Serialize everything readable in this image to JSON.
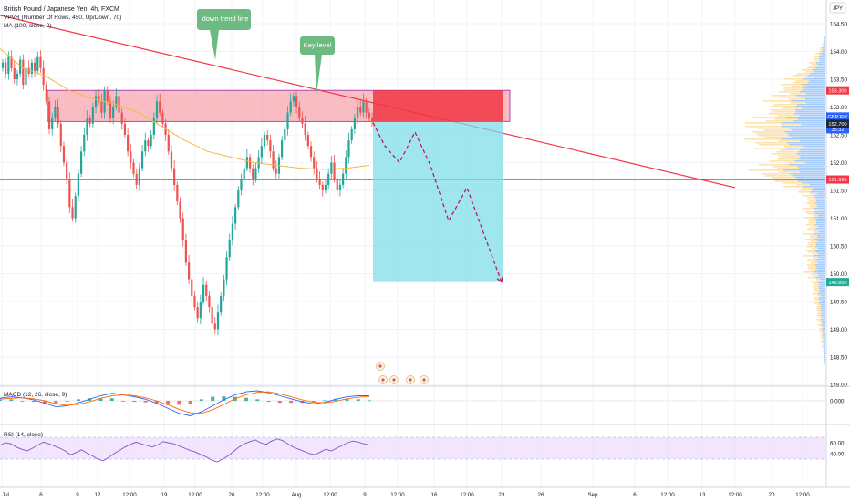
{
  "header": {
    "symbol_title": "British Pound / Japanese Yen, 4h, FXCM",
    "indicator_vpvr": "VPVR (Number Of Rows, 450, Up/Down, 70)",
    "indicator_ma": "MA (100, close, 0)",
    "currency_badge": "JPY"
  },
  "annotations": {
    "down_trend_line": "down trend line",
    "key_level": "Key level"
  },
  "chart_data": [
    {
      "type": "candlestick",
      "title": "British Pound / Japanese Yen, 4h, FXCM",
      "symbol": "GBPJPY",
      "ylim": [
        147.9,
        154.75
      ],
      "y_ticks": [
        "154.50",
        "154.00",
        "153.50",
        "153.00",
        "152.50",
        "152.00",
        "151.50",
        "151.00",
        "150.50",
        "150.00",
        "149.50",
        "149.00",
        "148.50",
        "148.00"
      ],
      "y_tick_values": [
        154.5,
        154.0,
        153.5,
        153.0,
        152.5,
        152.0,
        151.5,
        151.0,
        150.5,
        150.0,
        149.5,
        149.0,
        148.5,
        148.0
      ],
      "x_ticks": [
        "Jul",
        "6",
        "9",
        "12",
        "12:00",
        "19",
        "12:00",
        "26",
        "12:00",
        "Aug",
        "12:00",
        "9",
        "12:00",
        "16",
        "12:00",
        "23",
        "26",
        "Sep",
        "6",
        "12:00",
        "13",
        "12:00",
        "20",
        "12:00"
      ],
      "price_labels": [
        {
          "text": "153.300",
          "value": 153.3,
          "color": "#f23645"
        },
        {
          "text": "GBPJPY",
          "value": 152.83,
          "color": "#2962ff"
        },
        {
          "text": "152.734",
          "value": 152.734,
          "color": "#2962ff"
        },
        {
          "text": "35:32",
          "value": 152.6,
          "color": "#2962ff"
        },
        {
          "text": "152.700",
          "value": 152.7,
          "color": "#1f2a37"
        },
        {
          "text": "151.696",
          "value": 151.696,
          "color": "#f23645"
        },
        {
          "text": "149.850",
          "value": 149.85,
          "color": "#22ab94"
        }
      ],
      "key_level_zone": {
        "top": 153.3,
        "bottom": 152.74
      },
      "horizontal_level": 151.696,
      "trend_line": {
        "from": 154.65,
        "to": 151.55
      },
      "ma_100": [
        154.05,
        153.7,
        153.55,
        153.3,
        153.15,
        153.05,
        152.9,
        152.65,
        152.4,
        152.2,
        152.1,
        152.0,
        151.95,
        151.9,
        151.88,
        151.9,
        151.95
      ],
      "candles_close": [
        153.8,
        153.6,
        153.9,
        153.7,
        153.5,
        153.6,
        153.85,
        153.4,
        153.7,
        153.6,
        153.8,
        153.65,
        153.9,
        153.7,
        153.4,
        153.1,
        152.6,
        152.8,
        153.0,
        152.7,
        152.3,
        152.0,
        151.7,
        151.2,
        151.0,
        151.4,
        151.8,
        152.2,
        152.5,
        152.8,
        152.7,
        153.0,
        153.2,
        153.1,
        152.9,
        153.3,
        153.1,
        152.8,
        153.0,
        153.2,
        152.9,
        152.7,
        152.5,
        152.2,
        152.0,
        151.8,
        151.6,
        151.9,
        152.2,
        152.4,
        152.3,
        152.5,
        152.8,
        153.1,
        152.9,
        152.7,
        152.5,
        152.2,
        151.9,
        151.6,
        151.3,
        151.0,
        150.6,
        150.2,
        149.9,
        149.6,
        149.4,
        149.2,
        149.5,
        149.8,
        149.6,
        149.4,
        149.1,
        149.0,
        149.3,
        149.6,
        149.9,
        150.3,
        150.6,
        150.9,
        151.2,
        151.5,
        151.7,
        151.9,
        152.1,
        151.9,
        151.7,
        151.9,
        152.1,
        152.3,
        152.5,
        152.4,
        152.2,
        151.9,
        151.8,
        152.1,
        152.4,
        152.6,
        152.9,
        153.1,
        153.2,
        153.0,
        152.8,
        152.7,
        152.5,
        152.3,
        152.1,
        151.9,
        151.7,
        151.6,
        151.5,
        151.6,
        151.8,
        152.0,
        151.7,
        151.5,
        151.6,
        151.8,
        152.1,
        152.4,
        152.6,
        152.8,
        153.0,
        152.9,
        153.1,
        152.9,
        152.8,
        152.73
      ],
      "projection_path": [
        152.72,
        152.3,
        152.0,
        152.55,
        151.95,
        150.95,
        151.55,
        149.85
      ],
      "short_position": {
        "entry": 152.734,
        "stop": 153.3,
        "target": 149.85
      }
    },
    {
      "type": "line",
      "title": "MACD (12, 26, close, 9)",
      "y_ticks": [
        "0.000"
      ],
      "y_tick_values": [
        0.0
      ],
      "series": [
        {
          "values": [
            0.05,
            0.08,
            0.06,
            0.02,
            -0.05,
            -0.12,
            -0.1,
            -0.04,
            0.03,
            0.1,
            0.15,
            0.12,
            0.08,
            0.03,
            -0.05,
            -0.15,
            -0.25,
            -0.3,
            -0.22,
            -0.1,
            0.02,
            0.12,
            0.18,
            0.2,
            0.16,
            0.1,
            0.04,
            -0.02,
            -0.06,
            -0.03,
            0.03,
            0.08,
            0.1,
            0.1
          ]
        },
        {
          "values": [
            0.03,
            0.05,
            0.06,
            0.04,
            0.0,
            -0.06,
            -0.09,
            -0.07,
            -0.02,
            0.05,
            0.1,
            0.12,
            0.1,
            0.06,
            0.0,
            -0.08,
            -0.17,
            -0.24,
            -0.25,
            -0.18,
            -0.07,
            0.04,
            0.12,
            0.17,
            0.18,
            0.14,
            0.08,
            0.02,
            -0.03,
            -0.04,
            -0.01,
            0.04,
            0.07,
            0.09
          ]
        }
      ],
      "histogram": [
        0.02,
        0.03,
        0.0,
        -0.02,
        -0.05,
        -0.06,
        -0.01,
        0.03,
        0.05,
        0.05,
        0.05,
        0.0,
        -0.02,
        -0.03,
        -0.05,
        -0.07,
        -0.08,
        -0.06,
        0.03,
        0.08,
        0.09,
        0.08,
        0.06,
        0.03,
        -0.02,
        -0.04,
        -0.04,
        -0.04,
        -0.03,
        0.01,
        0.04,
        0.04,
        0.03,
        0.01
      ]
    },
    {
      "type": "line",
      "title": "RSI (14, close)",
      "y_ticks": [
        "60.00",
        "40.00"
      ],
      "y_tick_values": [
        60,
        40
      ],
      "ylim": [
        20,
        80
      ],
      "series": [
        {
          "values": [
            55,
            60,
            58,
            52,
            48,
            45,
            50,
            56,
            61,
            58,
            54,
            50,
            45,
            38,
            42,
            47,
            41,
            36,
            30,
            27,
            33,
            40,
            46,
            52,
            57,
            61,
            58,
            55,
            52,
            56,
            62,
            60,
            58,
            54,
            50,
            46,
            43,
            38,
            34,
            28,
            25,
            30,
            36,
            44,
            52,
            58,
            62,
            65,
            60,
            57,
            63,
            67,
            64,
            58,
            52,
            48,
            44,
            40,
            38,
            43,
            48,
            45,
            50,
            55,
            60,
            63,
            61,
            58,
            56
          ]
        }
      ]
    }
  ]
}
